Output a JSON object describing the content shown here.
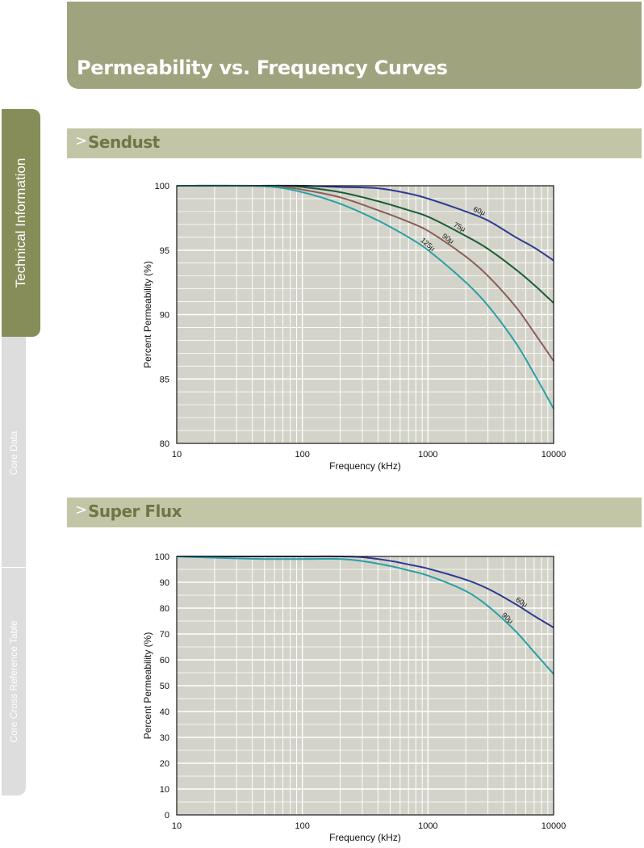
{
  "header": {
    "title": "Permeability vs. Frequency Curves"
  },
  "side_tabs": [
    {
      "label": "Technical Information",
      "active": true
    },
    {
      "label": "Core Data",
      "active": false
    },
    {
      "label": "Core Cross Reference Table",
      "active": false
    }
  ],
  "sections": [
    {
      "chevron": ">",
      "title": "Sendust"
    },
    {
      "chevron": ">",
      "title": "Super Flux"
    }
  ],
  "colors": {
    "header_bg": "#a0a47e",
    "section_bg": "#c2c6a6",
    "section_text": "#6f7646",
    "plot_bg": "#d3d3c9",
    "grid": "#ffffff"
  },
  "chart_data": [
    {
      "type": "line",
      "title": "",
      "xlabel": "Frequency (kHz)",
      "ylabel": "Percent Permeability (%)",
      "xscale": "log",
      "xlim": [
        10,
        10000
      ],
      "ylim": [
        80,
        100
      ],
      "xticks": [
        10,
        100,
        1000,
        10000
      ],
      "xtick_labels": [
        "10",
        "100",
        "1000",
        "10000"
      ],
      "yticks": [
        80,
        85,
        90,
        95,
        100
      ],
      "ytick_labels": [
        "80",
        "85",
        "90",
        "95",
        "100"
      ],
      "grid": true,
      "series": [
        {
          "name": "60μ",
          "color": "#2e3a93",
          "x": [
            10,
            50,
            100,
            200,
            400,
            700,
            1000,
            2000,
            3000,
            5000,
            7000,
            10000
          ],
          "y": [
            100,
            100,
            100,
            99.9,
            99.8,
            99.4,
            99.0,
            98.0,
            97.3,
            96.0,
            95.2,
            94.2
          ]
        },
        {
          "name": "75μ",
          "color": "#1b5e33",
          "x": [
            10,
            40,
            70,
            100,
            200,
            400,
            700,
            1000,
            2000,
            3000,
            5000,
            7000,
            10000
          ],
          "y": [
            100,
            100,
            100,
            99.9,
            99.5,
            98.8,
            98.1,
            97.6,
            96.1,
            95.1,
            93.5,
            92.3,
            90.9
          ]
        },
        {
          "name": "90μ",
          "color": "#8c5e5a",
          "x": [
            10,
            40,
            70,
            100,
            200,
            400,
            700,
            1000,
            2000,
            3000,
            5000,
            7000,
            10000
          ],
          "y": [
            100,
            100,
            99.9,
            99.7,
            99.1,
            98.1,
            97.2,
            96.5,
            94.5,
            93.0,
            90.6,
            88.6,
            86.4
          ]
        },
        {
          "name": "125μ",
          "color": "#2aa0a4",
          "x": [
            10,
            30,
            60,
            100,
            200,
            400,
            700,
            1000,
            2000,
            3000,
            5000,
            7000,
            10000
          ],
          "y": [
            100,
            100,
            99.9,
            99.5,
            98.6,
            97.3,
            96.0,
            95.0,
            92.5,
            90.7,
            87.8,
            85.4,
            82.7
          ]
        }
      ],
      "annotations": [
        {
          "text": "60μ",
          "series": "60μ",
          "x": 2600
        },
        {
          "text": "75μ",
          "series": "75μ",
          "x": 1800
        },
        {
          "text": "90μ",
          "series": "90μ",
          "x": 1450
        },
        {
          "text": "125μ",
          "series": "125μ",
          "x": 1000
        }
      ]
    },
    {
      "type": "line",
      "title": "",
      "xlabel": "Frequency (kHz)",
      "ylabel": "Percent Permeability (%)",
      "xscale": "log",
      "xlim": [
        10,
        10000
      ],
      "ylim": [
        0,
        100
      ],
      "xticks": [
        10,
        100,
        1000,
        10000
      ],
      "xtick_labels": [
        "10",
        "100",
        "1000",
        "10000"
      ],
      "yticks": [
        0,
        10,
        20,
        30,
        40,
        50,
        60,
        70,
        80,
        90,
        100
      ],
      "ytick_labels": [
        "0",
        "10",
        "20",
        "30",
        "40",
        "50",
        "60",
        "70",
        "80",
        "90",
        "100"
      ],
      "grid": true,
      "series": [
        {
          "name": "60μ",
          "color": "#2e3a93",
          "x": [
            10,
            30,
            100,
            200,
            300,
            500,
            700,
            1000,
            2000,
            3000,
            5000,
            7000,
            10000
          ],
          "y": [
            100,
            100,
            100,
            100,
            99.7,
            98.3,
            96.9,
            95.3,
            91.0,
            87.5,
            81.5,
            77.0,
            72.5
          ]
        },
        {
          "name": "90μ",
          "color": "#2aa0a4",
          "x": [
            10,
            20,
            50,
            100,
            200,
            300,
            500,
            700,
            1000,
            2000,
            3000,
            5000,
            7000,
            10000
          ],
          "y": [
            100,
            99.5,
            99,
            99,
            99,
            98.2,
            96.3,
            94.6,
            92.6,
            86.6,
            80.8,
            71.0,
            63.0,
            54.5
          ]
        }
      ],
      "annotations": [
        {
          "text": "60μ",
          "series": "60μ",
          "x": 5600
        },
        {
          "text": "90μ",
          "series": "90μ",
          "x": 4300
        }
      ]
    }
  ]
}
